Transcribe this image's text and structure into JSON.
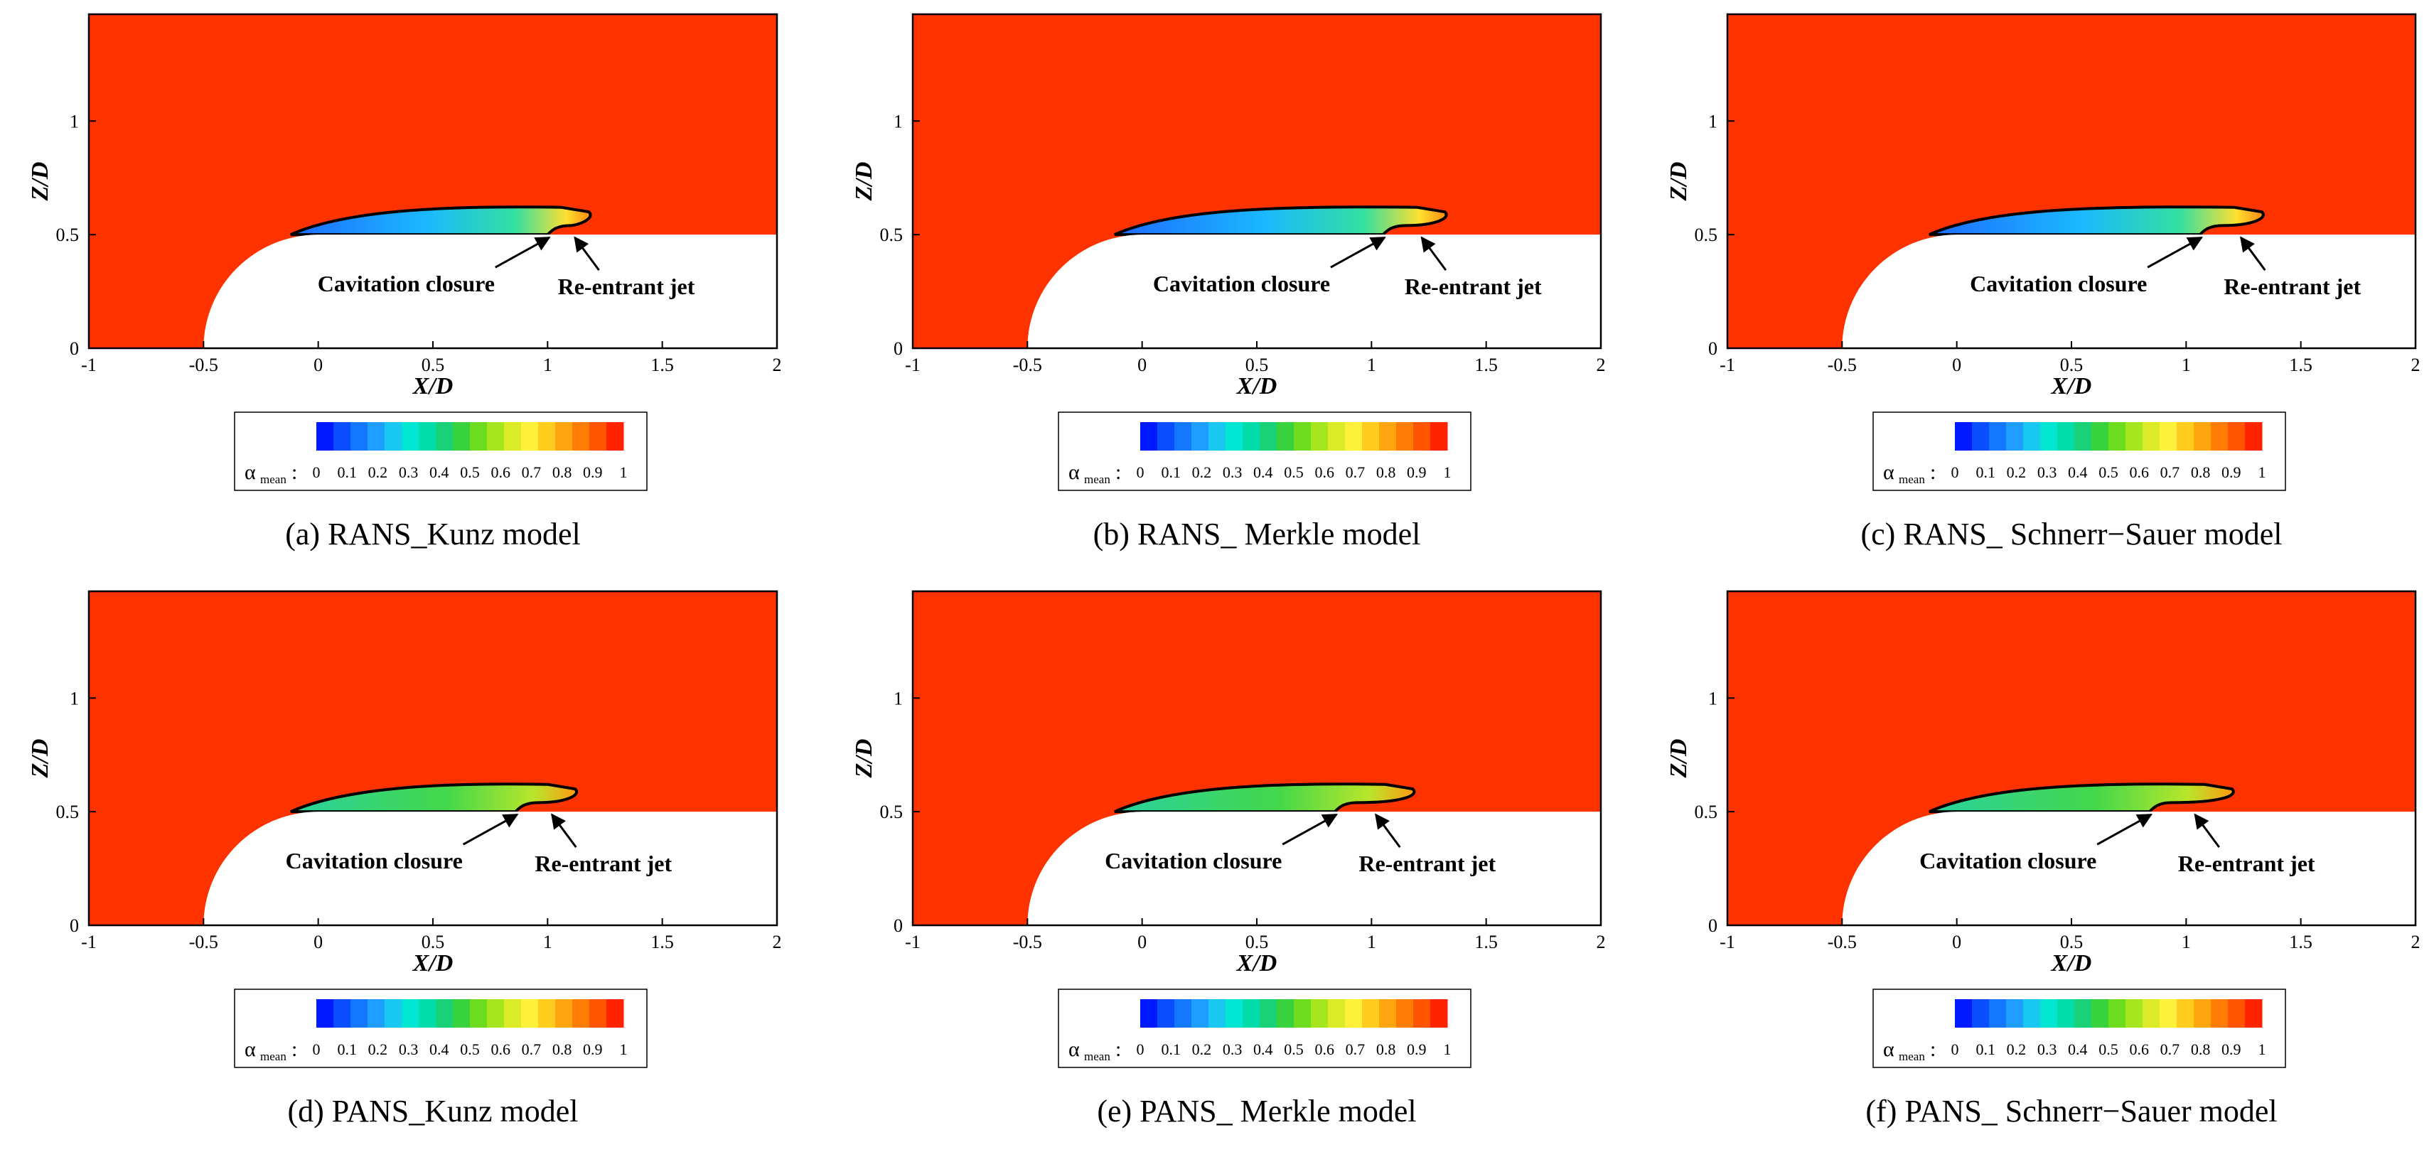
{
  "colors": {
    "liquid": "#ff3300",
    "cavity_outline": "#000000",
    "body": "#ffffff"
  },
  "colorbar": {
    "symbol": "α",
    "subscript": "mean",
    "colon": ":",
    "ticks": [
      "0",
      "0.1",
      "0.2",
      "0.3",
      "0.4",
      "0.5",
      "0.6",
      "0.7",
      "0.8",
      "0.9",
      "1"
    ],
    "colors": [
      "#0019ff",
      "#0a4cff",
      "#1478ff",
      "#1e9fff",
      "#19c8f0",
      "#00e6d2",
      "#00dcaa",
      "#19d278",
      "#37d23c",
      "#6edc1e",
      "#a5e61e",
      "#dceb28",
      "#fff03c",
      "#ffcd1e",
      "#ffa50f",
      "#ff7d05",
      "#ff5500",
      "#ff2300"
    ]
  },
  "panels": [
    {
      "caption": "(a) RANS_Kunz model",
      "xlabel": "X/D",
      "ylabel": "Z/D",
      "xticks": [
        "-1",
        "-0.5",
        "0",
        "0.5",
        "1",
        "1.5",
        "2"
      ],
      "yticks": [
        "0",
        "0.5",
        "1"
      ],
      "annotations": {
        "closure": "Cavitation closure",
        "jet": "Re-entrant jet"
      },
      "cavity_end_x": 1.18,
      "closure_x": 1.02,
      "jet_x": 1.1
    },
    {
      "caption": "(b) RANS_ Merkle model",
      "xlabel": "X/D",
      "ylabel": "Z/D",
      "xticks": [
        "-1",
        "-0.5",
        "0",
        "0.5",
        "1",
        "1.5",
        "2"
      ],
      "yticks": [
        "0",
        "0.5",
        "1"
      ],
      "annotations": {
        "closure": "Cavitation closure",
        "jet": "Re-entrant jet"
      },
      "cavity_end_x": 1.32,
      "closure_x": 1.07,
      "jet_x": 1.2
    },
    {
      "caption": "(c) RANS_ Schnerr−Sauer model",
      "xlabel": "X/D",
      "ylabel": "Z/D",
      "xticks": [
        "-1",
        "-0.5",
        "0",
        "0.5",
        "1",
        "1.5",
        "2"
      ],
      "yticks": [
        "0",
        "0.5",
        "1"
      ],
      "annotations": {
        "closure": "Cavitation closure",
        "jet": "Re-entrant jet"
      },
      "cavity_end_x": 1.33,
      "closure_x": 1.08,
      "jet_x": 1.22
    },
    {
      "caption": "(d) PANS_Kunz model",
      "xlabel": "X/D",
      "ylabel": "Z/D",
      "xticks": [
        "-1",
        "-0.5",
        "0",
        "0.5",
        "1",
        "1.5",
        "2"
      ],
      "yticks": [
        "0",
        "0.5",
        "1"
      ],
      "annotations": {
        "closure": "Cavitation closure",
        "jet": "Re-entrant jet"
      },
      "cavity_end_x": 1.12,
      "closure_x": 0.88,
      "jet_x": 1.0
    },
    {
      "caption": "(e) PANS_ Merkle model",
      "xlabel": "X/D",
      "ylabel": "Z/D",
      "xticks": [
        "-1",
        "-0.5",
        "0",
        "0.5",
        "1",
        "1.5",
        "2"
      ],
      "yticks": [
        "0",
        "0.5",
        "1"
      ],
      "annotations": {
        "closure": "Cavitation closure",
        "jet": "Re-entrant jet"
      },
      "cavity_end_x": 1.18,
      "closure_x": 0.86,
      "jet_x": 1.0
    },
    {
      "caption": "(f) PANS_ Schnerr−Sauer model",
      "xlabel": "X/D",
      "ylabel": "Z/D",
      "xticks": [
        "-1",
        "-0.5",
        "0",
        "0.5",
        "1",
        "1.5",
        "2"
      ],
      "yticks": [
        "0",
        "0.5",
        "1"
      ],
      "annotations": {
        "closure": "Cavitation closure",
        "jet": "Re-entrant jet"
      },
      "cavity_end_x": 1.2,
      "closure_x": 0.86,
      "jet_x": 1.02
    }
  ]
}
